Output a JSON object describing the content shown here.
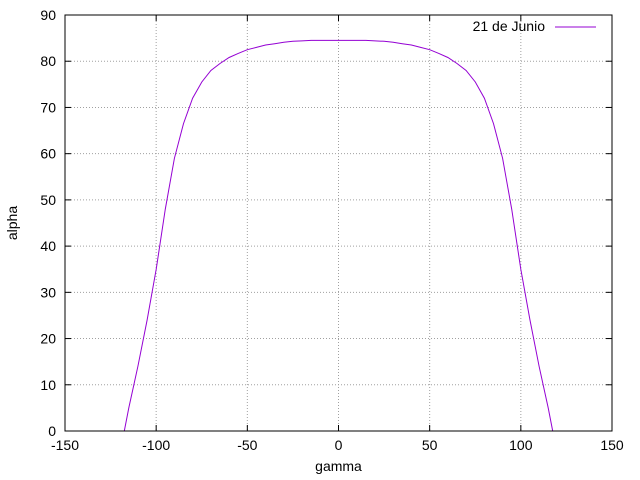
{
  "chart_data": {
    "type": "line",
    "title": "",
    "xlabel": "gamma",
    "ylabel": "alpha",
    "xlim": [
      -150,
      150
    ],
    "ylim": [
      0,
      90
    ],
    "xticks": [
      -150,
      -100,
      -50,
      0,
      50,
      100,
      150
    ],
    "yticks": [
      0,
      10,
      20,
      30,
      40,
      50,
      60,
      70,
      80,
      90
    ],
    "grid": true,
    "legend_position": "top-right",
    "series": [
      {
        "name": "21 de Junio",
        "color": "#9400d3",
        "x": [
          -117.5,
          -115,
          -110,
          -105,
          -100,
          -95,
          -90,
          -85,
          -80,
          -75,
          -70,
          -65,
          -60,
          -55,
          -50,
          -45,
          -40,
          -35,
          -30,
          -25,
          -20,
          -15,
          -10,
          -5,
          0,
          5,
          10,
          15,
          20,
          25,
          30,
          35,
          40,
          45,
          50,
          55,
          60,
          65,
          70,
          75,
          80,
          85,
          90,
          95,
          100,
          105,
          110,
          115,
          117.5
        ],
        "y": [
          0,
          5,
          14,
          24,
          35,
          48,
          59,
          66.5,
          72,
          75.5,
          78,
          79.5,
          80.8,
          81.7,
          82.5,
          83,
          83.5,
          83.8,
          84.1,
          84.3,
          84.4,
          84.5,
          84.5,
          84.5,
          84.5,
          84.5,
          84.5,
          84.5,
          84.4,
          84.3,
          84.1,
          83.8,
          83.5,
          83,
          82.5,
          81.7,
          80.8,
          79.5,
          78,
          75.5,
          72,
          66.5,
          59,
          48,
          35,
          24,
          14,
          5,
          0
        ]
      }
    ]
  }
}
